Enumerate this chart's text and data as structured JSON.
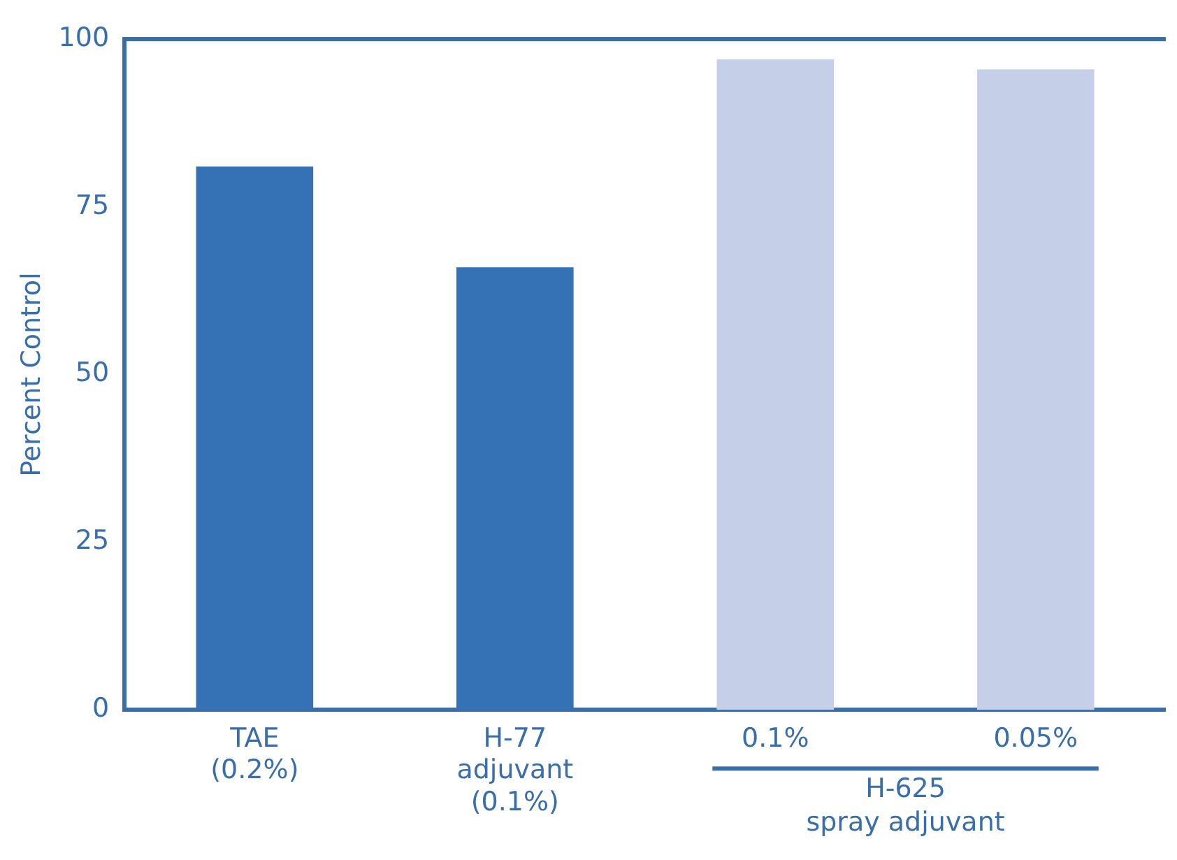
{
  "chart_data": {
    "type": "bar",
    "ylabel": "Percent Control",
    "categories": [
      "TAE\n(0.2%)",
      "H-77\nadjuvant\n(0.1%)",
      "0.1%",
      "0.05%"
    ],
    "values": [
      81,
      66,
      97,
      95.5
    ],
    "colors": [
      "#3572b5",
      "#3572b5",
      "#c5d0e8",
      "#c5d0e8"
    ],
    "ylim": [
      0,
      100
    ],
    "yticks": [
      0,
      25,
      50,
      75,
      100
    ],
    "grid": false,
    "legend": false,
    "annotations": [
      "H-625\nspray adjuvant"
    ]
  }
}
